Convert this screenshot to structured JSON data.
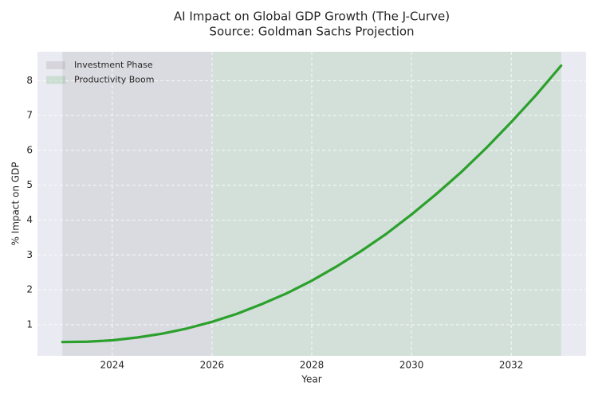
{
  "chart_data": {
    "type": "line",
    "title": "AI Impact on Global GDP Growth (The J-Curve)",
    "subtitle": "Source: Goldman Sachs Projection",
    "x_label": "Year",
    "y_label": "% Impact on GDP",
    "x": [
      2023,
      2023.5,
      2024,
      2024.5,
      2025,
      2025.5,
      2026,
      2026.5,
      2027,
      2027.5,
      2028,
      2028.5,
      2029,
      2029.5,
      2030,
      2030.5,
      2031,
      2031.5,
      2032,
      2032.5,
      2033
    ],
    "series": [
      {
        "color": "#2ca02c",
        "values": [
          0.5,
          0.51,
          0.55,
          0.63,
          0.74,
          0.89,
          1.08,
          1.31,
          1.59,
          1.9,
          2.26,
          2.67,
          3.12,
          3.61,
          4.16,
          4.75,
          5.38,
          6.07,
          6.81,
          7.59,
          8.43
        ]
      }
    ],
    "spans": [
      {
        "name": "Investment Phase",
        "start": 2023,
        "end": 2026,
        "color": "#808080",
        "alpha": 0.15
      },
      {
        "name": "Productivity Boom",
        "start": 2026,
        "end": 2033,
        "color": "#2ca02c",
        "alpha": 0.12
      }
    ],
    "xlim": [
      2022.5,
      2033.5
    ],
    "ylim": [
      0.105,
      8.83
    ],
    "xticks": [
      2024,
      2026,
      2028,
      2030,
      2032
    ],
    "yticks": [
      1,
      2,
      3,
      4,
      5,
      6,
      7,
      8
    ],
    "grid": true,
    "legend": "upper-left"
  }
}
